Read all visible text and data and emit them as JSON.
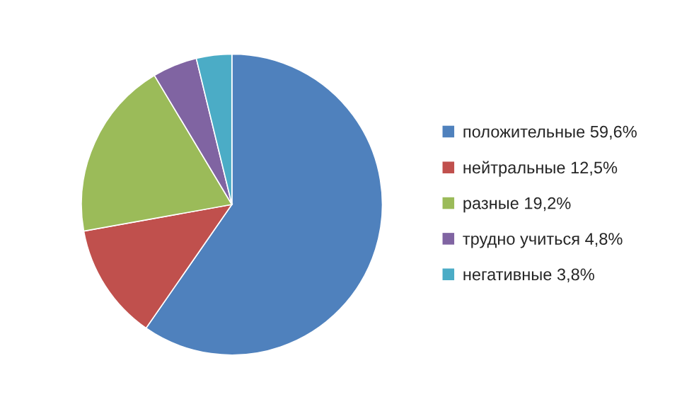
{
  "chart_data": {
    "type": "pie",
    "categories": [
      "положительные 59,6%",
      "нейтральные 12,5%",
      "разные 19,2%",
      "трудно учиться 4,8%",
      "негативные 3,8%"
    ],
    "values": [
      59.6,
      12.5,
      19.2,
      4.8,
      3.8
    ],
    "colors": [
      "#4f81bd",
      "#c0504d",
      "#9bbb59",
      "#8064a2",
      "#4bacc6"
    ],
    "legend": "right"
  }
}
